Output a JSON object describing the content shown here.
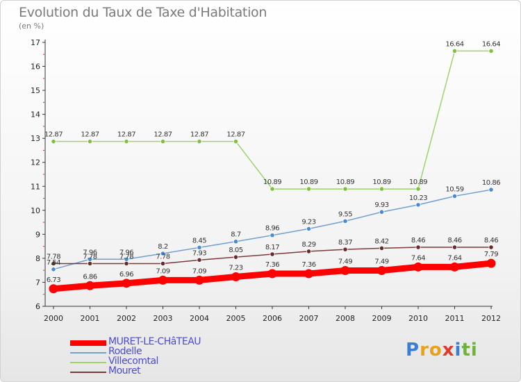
{
  "title": "Evolution du Taux de Taxe d'Habitation",
  "subtitle": "(en %)",
  "logo": {
    "text": "Proxiti",
    "letters": [
      {
        "ch": "P",
        "color": "#3a7fd0"
      },
      {
        "ch": "r",
        "color": "#e8a21a"
      },
      {
        "ch": "o",
        "color": "#e8a21a"
      },
      {
        "ch": "x",
        "color": "#e23a2a"
      },
      {
        "ch": "i",
        "color": "#3a7fd0"
      },
      {
        "ch": "t",
        "color": "#6fb33a"
      },
      {
        "ch": "i",
        "color": "#6fb33a"
      }
    ]
  },
  "chart_data": {
    "type": "line",
    "x": [
      "2000",
      "2001",
      "2002",
      "2003",
      "2004",
      "2005",
      "2006",
      "2007",
      "2008",
      "2009",
      "2010",
      "2011",
      "2012"
    ],
    "ylim": [
      6,
      17
    ],
    "yticks": [
      6,
      7,
      8,
      9,
      10,
      11,
      12,
      13,
      14,
      15,
      16,
      17
    ],
    "grid": false,
    "legend_position": "bottom-left",
    "series": [
      {
        "name": "MURET-LE-CHâTEAU",
        "color": "#ff0000",
        "marker_color": "#ff0000",
        "style": "thick",
        "values": [
          6.73,
          6.86,
          6.96,
          7.09,
          7.09,
          7.23,
          7.36,
          7.36,
          7.49,
          7.49,
          7.64,
          7.64,
          7.79
        ],
        "labels": [
          "6.73",
          "6.86",
          "6.96",
          "7.09",
          "7.09",
          "7.23",
          "7.36",
          "7.36",
          "7.49",
          "7.49",
          "7.64",
          "7.64",
          "7.79"
        ]
      },
      {
        "name": "Rodelle",
        "color": "#6fa0cf",
        "marker_color": "#4a8ad4",
        "style": "thin",
        "values": [
          7.54,
          7.96,
          7.96,
          8.2,
          8.45,
          8.7,
          8.96,
          9.23,
          9.55,
          9.93,
          10.23,
          10.59,
          10.86
        ],
        "labels": [
          "7.54",
          "7.96",
          "7.96",
          "8.2",
          "8.45",
          "8.7",
          "8.96",
          "9.23",
          "9.55",
          "9.93",
          "10.23",
          "10.59",
          "10.86"
        ]
      },
      {
        "name": "Villecomtal",
        "color": "#9ad46a",
        "marker_color": "#7cc33a",
        "style": "thin",
        "values": [
          12.87,
          12.87,
          12.87,
          12.87,
          12.87,
          12.87,
          10.89,
          10.89,
          10.89,
          10.89,
          10.89,
          16.64,
          16.64
        ],
        "labels": [
          "12.87",
          "12.87",
          "12.87",
          "12.87",
          "12.87",
          "12.87",
          "10.89",
          "10.89",
          "10.89",
          "10.89",
          "10.89",
          "16.64",
          "16.64"
        ]
      },
      {
        "name": "Mouret",
        "color": "#7a3a3a",
        "marker_color": "#6a2a2a",
        "style": "thin",
        "values": [
          7.78,
          7.78,
          7.78,
          7.78,
          7.93,
          8.05,
          8.17,
          8.29,
          8.37,
          8.42,
          8.46,
          8.46,
          8.46
        ],
        "labels": [
          "7.78",
          "7.78",
          "7.78",
          "7.78",
          "7.93",
          "8.05",
          "8.17",
          "8.29",
          "8.37",
          "8.42",
          "8.46",
          "8.46",
          "8.46"
        ]
      }
    ]
  }
}
